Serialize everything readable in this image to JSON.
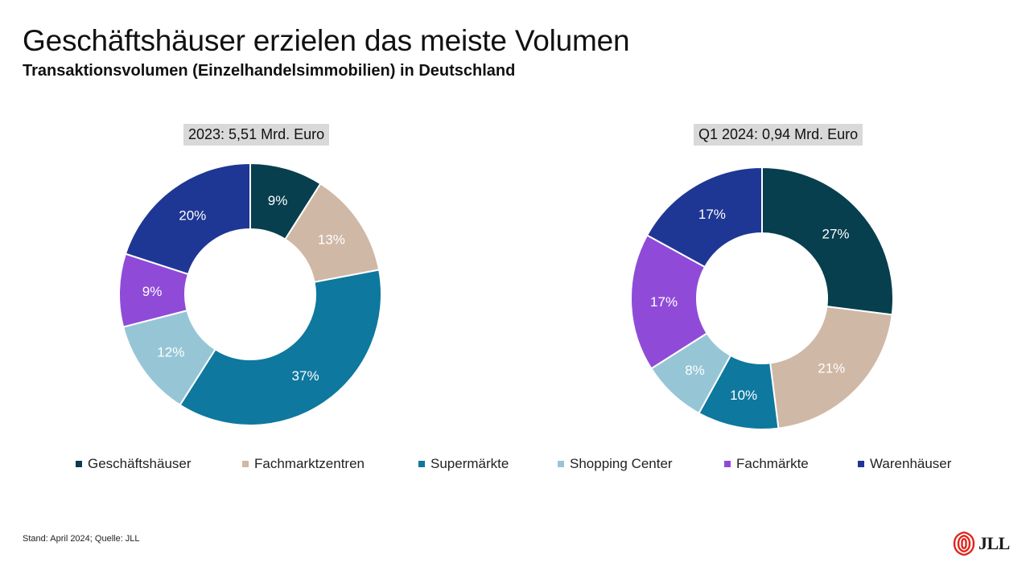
{
  "header": {
    "title": "Geschäftshäuser erzielen das meiste Volumen",
    "subtitle": "Transaktionsvolumen (Einzelhandelsimmobilien) in Deutschland"
  },
  "legend": [
    {
      "label": "Geschäftshäuser",
      "color": "#073f4f"
    },
    {
      "label": "Fachmarktzentren",
      "color": "#d0b8a6"
    },
    {
      "label": "Supermärkte",
      "color": "#0e789e"
    },
    {
      "label": "Shopping Center",
      "color": "#96c6d6"
    },
    {
      "label": "Fachmärkte",
      "color": "#8f4bd8"
    },
    {
      "label": "Warenhäuser",
      "color": "#1f3794"
    }
  ],
  "chart_data": [
    {
      "type": "pie",
      "title": "2023: 5,51 Mrd. Euro",
      "categories": [
        "Geschäftshäuser",
        "Fachmarktzentren",
        "Supermärkte",
        "Shopping Center",
        "Fachmärkte",
        "Warenhäuser"
      ],
      "values": [
        9,
        13,
        37,
        12,
        9,
        20
      ],
      "labels": [
        "9%",
        "13%",
        "37%",
        "12%",
        "9%",
        "20%"
      ],
      "unit": "%"
    },
    {
      "type": "pie",
      "title": "Q1 2024: 0,94 Mrd. Euro",
      "categories": [
        "Geschäftshäuser",
        "Fachmarktzentren",
        "Supermärkte",
        "Shopping Center",
        "Fachmärkte",
        "Warenhäuser"
      ],
      "values": [
        27,
        21,
        10,
        8,
        17,
        17
      ],
      "labels": [
        "27%",
        "21%",
        "10%",
        "8%",
        "17%",
        "17%"
      ],
      "unit": "%"
    }
  ],
  "footnote": "Stand: April 2024; Quelle: JLL",
  "logo": {
    "text": "JLL",
    "color": "#e1241c"
  }
}
